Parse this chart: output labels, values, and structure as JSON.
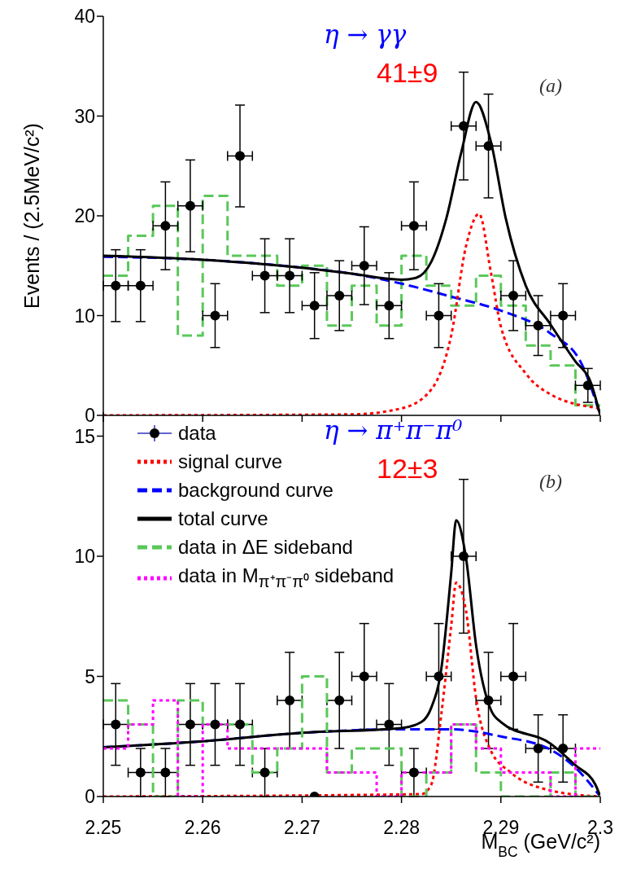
{
  "chart_data": [
    {
      "type": "line",
      "ylabel": "Events / (2.5MeV/c²)",
      "xlim": [
        2.25,
        2.3
      ],
      "xticks": [
        2.25,
        2.26,
        2.27,
        2.28,
        2.29,
        2.3
      ],
      "ylim": [
        0,
        40
      ],
      "yticks": [
        0,
        10,
        20,
        30,
        40
      ],
      "tick_labels": "y",
      "annotations": [
        "η → γγ",
        "41±9",
        "(a)"
      ],
      "series": [
        {
          "type": "histogram",
          "color": "#5ac85a",
          "line_style": "dashed",
          "bins": [
            2.25,
            2.2525,
            2.255,
            2.2575,
            2.26,
            2.2625,
            2.265,
            2.2675,
            2.27,
            2.2725,
            2.275,
            2.2775,
            2.28,
            2.2825,
            2.285,
            2.2875,
            2.29,
            2.2925,
            2.295,
            2.2975,
            2.3
          ],
          "values": [
            14,
            18,
            21,
            8,
            22,
            16,
            16,
            13,
            15,
            9,
            13,
            9,
            16,
            13,
            11,
            14,
            11,
            7,
            5,
            1
          ]
        },
        {
          "color": "#0000ff",
          "line_style": "dashed",
          "x": [
            2.25,
            2.26,
            2.27,
            2.275,
            2.28,
            2.285,
            2.29,
            2.295,
            2.298,
            2.3
          ],
          "values": [
            15.9,
            15.6,
            14.8,
            14.2,
            13.2,
            11.9,
            10.5,
            8.2,
            5.4,
            0
          ]
        },
        {
          "color": "#ff0000",
          "line_style": "dotted",
          "x": [
            2.25,
            2.275,
            2.28,
            2.283,
            2.285,
            2.2865,
            2.2878,
            2.289,
            2.29,
            2.2925,
            2.295,
            2.3
          ],
          "values": [
            0,
            0.1,
            0.7,
            2.6,
            8,
            17,
            20.2,
            14.3,
            8.9,
            4.2,
            2.1,
            0.7
          ]
        },
        {
          "color": "#000000",
          "line_style": "solid",
          "x": [
            2.25,
            2.26,
            2.27,
            2.275,
            2.28,
            2.2815,
            2.283,
            2.2845,
            2.286,
            2.2875,
            2.289,
            2.2905,
            2.2925,
            2.295,
            2.2975,
            2.299,
            2.3
          ],
          "values": [
            16,
            15.6,
            14.8,
            14.2,
            13.6,
            13.8,
            15.4,
            19.7,
            26.3,
            31.4,
            27.4,
            19.7,
            13,
            9.1,
            5.4,
            3.4,
            0
          ]
        },
        {
          "type": "scatter",
          "color": "#000000",
          "marker": "circle",
          "x": [
            2.25125,
            2.25375,
            2.25625,
            2.25875,
            2.26125,
            2.26375,
            2.26625,
            2.26875,
            2.27125,
            2.27375,
            2.27625,
            2.27875,
            2.28125,
            2.28375,
            2.28625,
            2.28875,
            2.29125,
            2.29375,
            2.29625,
            2.29875
          ],
          "values": [
            13,
            13,
            19,
            21,
            10,
            26,
            14,
            14,
            11,
            12,
            15,
            11,
            19,
            10,
            29,
            27,
            12,
            9,
            10,
            3
          ],
          "errors": [
            3.6,
            3.6,
            4.4,
            4.6,
            3.2,
            5.1,
            3.7,
            3.7,
            3.3,
            3.5,
            3.9,
            3.3,
            4.4,
            3.2,
            5.4,
            5.2,
            3.5,
            3,
            3.2,
            1.7
          ],
          "xerrors": [
            0.00125,
            0.00125,
            0.00125,
            0.00125,
            0.00125,
            0.00125,
            0.00125,
            0.00125,
            0.00125,
            0.00125,
            0.00125,
            0.00125,
            0.00125,
            0.00125,
            0.00125,
            0.00125,
            0.00125,
            0.00125,
            0.00125,
            0.00125
          ]
        }
      ]
    },
    {
      "type": "line",
      "xlabel": "M$_{BC}$ (GeV/c²)",
      "xlim": [
        2.25,
        2.3
      ],
      "xticks": [
        2.25,
        2.26,
        2.27,
        2.28,
        2.29,
        2.3
      ],
      "ylim": [
        0,
        16
      ],
      "yticks": [
        0,
        5,
        10,
        15
      ],
      "legend": "top left",
      "annotations": [
        "η → π⁺π⁻π⁰",
        "12±3",
        "(b)"
      ],
      "series": [
        {
          "type": "scatter",
          "name": "data",
          "color": "#000000",
          "marker": "circle",
          "x": [
            2.25125,
            2.25375,
            2.25625,
            2.25875,
            2.26125,
            2.26375,
            2.26625,
            2.26875,
            2.27125,
            2.27375,
            2.27625,
            2.27875,
            2.28125,
            2.28375,
            2.28625,
            2.28875,
            2.29125,
            2.29375,
            2.29625
          ],
          "values": [
            3,
            1,
            1,
            3,
            3,
            3,
            1,
            4,
            0,
            4,
            5,
            3,
            1,
            5,
            10,
            4,
            5,
            2,
            2
          ],
          "errors": [
            1.7,
            1,
            1,
            1.7,
            1.7,
            1.7,
            1,
            2,
            null,
            2,
            2.2,
            1.7,
            1,
            2.2,
            3.2,
            2,
            2.2,
            1.4,
            1.4
          ],
          "xerrors": [
            0.00125,
            0.00125,
            0.00125,
            0.00125,
            0.00125,
            0.00125,
            0.00125,
            0.00125,
            null,
            0.00125,
            0.00125,
            0.00125,
            0.00125,
            0.00125,
            0.00125,
            0.00125,
            0.00125,
            0.00125,
            0.00125
          ]
        },
        {
          "name": "signal curve",
          "color": "#ff0000",
          "line_style": "dotted",
          "x": [
            2.25,
            2.282,
            2.283,
            2.284,
            2.285,
            2.2855,
            2.2865,
            2.2875,
            2.289,
            2.291,
            2.295,
            2.3
          ],
          "values": [
            0,
            0.1,
            0.5,
            3.4,
            7.1,
            8.9,
            7.7,
            4.1,
            1.9,
            1,
            0.25,
            0
          ]
        },
        {
          "name": "background curve",
          "color": "#0000ff",
          "line_style": "dashed",
          "x": [
            2.25,
            2.26,
            2.27,
            2.28,
            2.285,
            2.29,
            2.295,
            2.2975,
            2.3
          ],
          "values": [
            2.05,
            2.3,
            2.65,
            2.8,
            2.8,
            2.5,
            1.95,
            1.2,
            0
          ]
        },
        {
          "name": "total curve",
          "color": "#000000",
          "line_style": "solid",
          "x": [
            2.25,
            2.26,
            2.27,
            2.28,
            2.282,
            2.283,
            2.284,
            2.285,
            2.2855,
            2.2865,
            2.2875,
            2.289,
            2.29,
            2.295,
            2.2975,
            2.2995,
            2.3
          ],
          "values": [
            2.05,
            2.3,
            2.65,
            2.85,
            3.1,
            3.7,
            5.3,
            9.3,
            11.5,
            9.9,
            6.3,
            3.6,
            3.1,
            2.2,
            1.3,
            0.5,
            0
          ]
        },
        {
          "type": "histogram",
          "name": "data in ΔE sideband",
          "color": "#5ac85a",
          "line_style": "dashed",
          "bins": [
            2.25,
            2.2525,
            2.255,
            2.2575,
            2.26,
            2.2625,
            2.265,
            2.2675,
            2.27,
            2.2725,
            2.275,
            2.2775,
            2.28,
            2.2825,
            2.285,
            2.2875,
            2.29,
            2.2925,
            2.295,
            2.2975,
            2.3
          ],
          "values": [
            4,
            3,
            0,
            4,
            3,
            3,
            1,
            2,
            5,
            1,
            2,
            2,
            0,
            1,
            3,
            1,
            0,
            0,
            1,
            0
          ]
        },
        {
          "type": "histogram",
          "name": "data in M$_{π⁺π⁻π⁰}$ sideband",
          "color": "#ff00ff",
          "line_style": "dotted",
          "bins": [
            2.25,
            2.2525,
            2.255,
            2.2575,
            2.26,
            2.2625,
            2.265,
            2.2675,
            2.27,
            2.2725,
            2.275,
            2.2775,
            2.28,
            2.2825,
            2.285,
            2.2875,
            2.29,
            2.2925,
            2.295,
            2.2975,
            2.3
          ],
          "values": [
            2,
            3,
            4,
            0,
            3,
            2,
            2,
            2,
            2,
            1,
            1,
            0,
            1,
            1,
            3,
            2,
            1,
            1,
            0,
            2
          ]
        }
      ]
    }
  ]
}
